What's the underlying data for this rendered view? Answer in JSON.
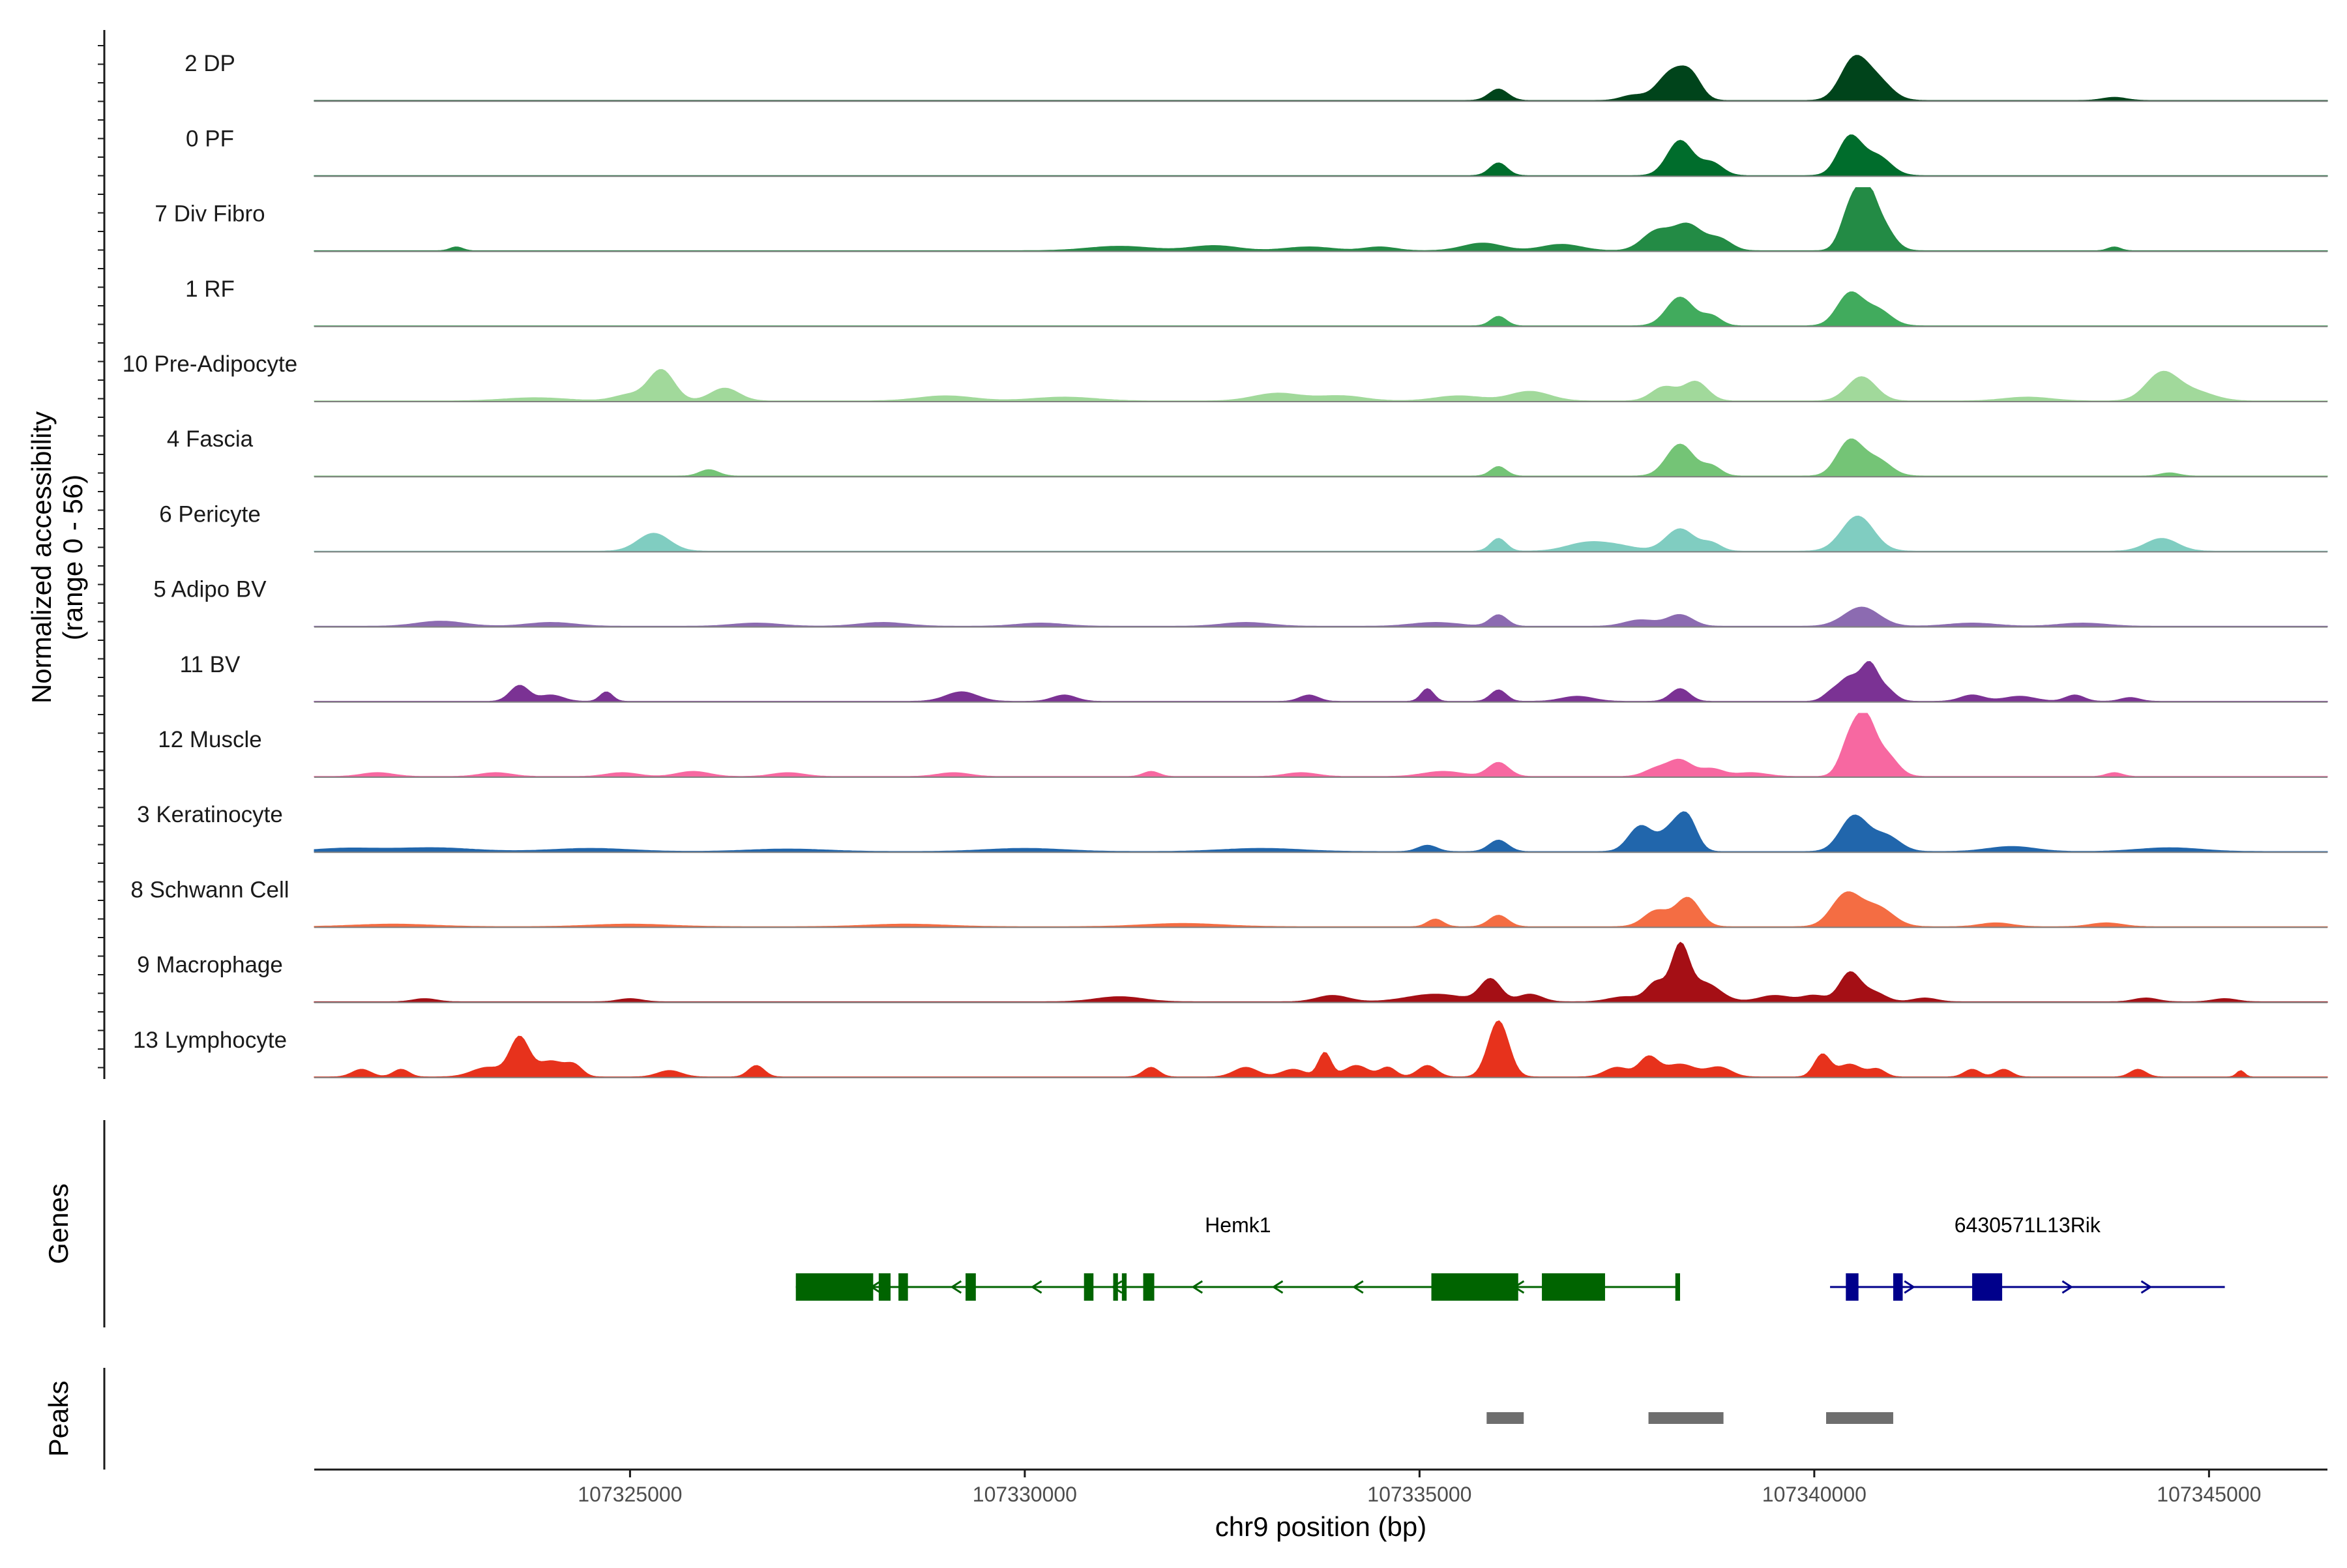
{
  "chart_data": {
    "type": "area",
    "title": "",
    "y_axis_label_line1": "Normalized accessibility",
    "y_axis_label_line2": "(range 0 - 56)",
    "ylim": [
      0,
      56
    ],
    "xlabel": "chr9 position (bp)",
    "xlim": [
      107321000,
      107346500
    ],
    "x_ticks": [
      107325000,
      107330000,
      107335000,
      107340000,
      107345000
    ],
    "x_tick_labels": [
      "107325000",
      "107330000",
      "107335000",
      "107340000",
      "107345000"
    ],
    "panel_labels": {
      "genes": "Genes",
      "peaks": "Peaks"
    },
    "tracks": [
      {
        "name": "2 DP",
        "color": "#00441b",
        "peaks": [
          [
            107336000,
            0.18,
            120
          ],
          [
            107338200,
            0.45,
            180
          ],
          [
            107338450,
            0.3,
            130
          ],
          [
            107340500,
            0.62,
            170
          ],
          [
            107340800,
            0.3,
            180
          ],
          [
            107337700,
            0.08,
            150
          ],
          [
            107343800,
            0.05,
            150
          ]
        ]
      },
      {
        "name": "0 PF",
        "color": "#006d2c",
        "peaks": [
          [
            107336000,
            0.2,
            110
          ],
          [
            107338300,
            0.55,
            160
          ],
          [
            107338700,
            0.2,
            140
          ],
          [
            107340450,
            0.6,
            150
          ],
          [
            107340800,
            0.3,
            170
          ]
        ]
      },
      {
        "name": "7 Div Fibro",
        "color": "#238b45",
        "peaks": [
          [
            107322800,
            0.06,
            80
          ],
          [
            107331200,
            0.07,
            400
          ],
          [
            107332400,
            0.08,
            300
          ],
          [
            107333600,
            0.06,
            300
          ],
          [
            107334500,
            0.06,
            200
          ],
          [
            107335800,
            0.12,
            250
          ],
          [
            107336800,
            0.1,
            250
          ],
          [
            107338000,
            0.3,
            180
          ],
          [
            107338400,
            0.4,
            180
          ],
          [
            107338800,
            0.18,
            150
          ],
          [
            107340450,
            0.6,
            120
          ],
          [
            107340650,
            0.8,
            120
          ],
          [
            107340850,
            0.4,
            150
          ],
          [
            107343800,
            0.06,
            80
          ]
        ]
      },
      {
        "name": "1 RF",
        "color": "#41ab5d",
        "peaks": [
          [
            107336000,
            0.15,
            100
          ],
          [
            107338300,
            0.45,
            170
          ],
          [
            107338700,
            0.15,
            120
          ],
          [
            107340450,
            0.5,
            160
          ],
          [
            107340800,
            0.25,
            170
          ]
        ]
      },
      {
        "name": "10 Pre-Adipocyte",
        "color": "#a1d99b",
        "peaks": [
          [
            107323800,
            0.05,
            400
          ],
          [
            107325000,
            0.1,
            200
          ],
          [
            107325400,
            0.48,
            160
          ],
          [
            107326200,
            0.2,
            180
          ],
          [
            107329000,
            0.08,
            350
          ],
          [
            107330500,
            0.06,
            400
          ],
          [
            107333200,
            0.12,
            300
          ],
          [
            107334000,
            0.08,
            300
          ],
          [
            107335500,
            0.08,
            300
          ],
          [
            107336400,
            0.15,
            250
          ],
          [
            107338100,
            0.22,
            160
          ],
          [
            107338500,
            0.3,
            150
          ],
          [
            107340600,
            0.38,
            180
          ],
          [
            107342700,
            0.06,
            300
          ],
          [
            107344400,
            0.42,
            200
          ],
          [
            107344800,
            0.15,
            250
          ]
        ]
      },
      {
        "name": "4 Fascia",
        "color": "#74c476",
        "peaks": [
          [
            107326000,
            0.1,
            120
          ],
          [
            107336000,
            0.15,
            100
          ],
          [
            107338300,
            0.5,
            170
          ],
          [
            107338700,
            0.15,
            120
          ],
          [
            107340450,
            0.55,
            160
          ],
          [
            107340800,
            0.25,
            170
          ],
          [
            107344500,
            0.05,
            120
          ]
        ]
      },
      {
        "name": "6 Pericyte",
        "color": "#80cdc1",
        "peaks": [
          [
            107325300,
            0.28,
            200
          ],
          [
            107336000,
            0.2,
            100
          ],
          [
            107337100,
            0.12,
            250
          ],
          [
            107337500,
            0.08,
            250
          ],
          [
            107338300,
            0.35,
            180
          ],
          [
            107338700,
            0.12,
            120
          ],
          [
            107340550,
            0.55,
            200
          ],
          [
            107344400,
            0.2,
            200
          ]
        ]
      },
      {
        "name": "5 Adipo BV",
        "color": "#8c6bb1",
        "peaks": [
          [
            107322600,
            0.08,
            300
          ],
          [
            107324000,
            0.06,
            300
          ],
          [
            107326600,
            0.05,
            300
          ],
          [
            107328200,
            0.06,
            300
          ],
          [
            107330200,
            0.05,
            300
          ],
          [
            107332800,
            0.06,
            300
          ],
          [
            107335200,
            0.06,
            300
          ],
          [
            107336000,
            0.18,
            110
          ],
          [
            107337800,
            0.1,
            200
          ],
          [
            107338300,
            0.18,
            160
          ],
          [
            107340600,
            0.3,
            220
          ],
          [
            107342000,
            0.05,
            300
          ],
          [
            107343400,
            0.05,
            300
          ]
        ]
      },
      {
        "name": "11 BV",
        "color": "#7b3294",
        "peaks": [
          [
            107323600,
            0.25,
            120
          ],
          [
            107324000,
            0.1,
            150
          ],
          [
            107324700,
            0.15,
            80
          ],
          [
            107329200,
            0.15,
            200
          ],
          [
            107330500,
            0.1,
            150
          ],
          [
            107333600,
            0.1,
            120
          ],
          [
            107335100,
            0.2,
            80
          ],
          [
            107336000,
            0.18,
            100
          ],
          [
            107337000,
            0.08,
            200
          ],
          [
            107338300,
            0.2,
            120
          ],
          [
            107340200,
            0.1,
            100
          ],
          [
            107340450,
            0.38,
            140
          ],
          [
            107340700,
            0.5,
            100
          ],
          [
            107340900,
            0.2,
            120
          ],
          [
            107342000,
            0.1,
            150
          ],
          [
            107342600,
            0.08,
            200
          ],
          [
            107343300,
            0.1,
            120
          ],
          [
            107344000,
            0.06,
            120
          ]
        ]
      },
      {
        "name": "12 Muscle",
        "color": "#f768a1",
        "peaks": [
          [
            107321800,
            0.06,
            200
          ],
          [
            107323300,
            0.06,
            200
          ],
          [
            107324900,
            0.06,
            200
          ],
          [
            107325800,
            0.08,
            200
          ],
          [
            107327000,
            0.06,
            200
          ],
          [
            107329100,
            0.06,
            200
          ],
          [
            107331600,
            0.08,
            100
          ],
          [
            107333500,
            0.06,
            200
          ],
          [
            107335300,
            0.08,
            250
          ],
          [
            107336000,
            0.22,
            130
          ],
          [
            107338000,
            0.12,
            150
          ],
          [
            107338300,
            0.25,
            150
          ],
          [
            107338700,
            0.12,
            150
          ],
          [
            107339200,
            0.06,
            200
          ],
          [
            107340450,
            0.55,
            120
          ],
          [
            107340650,
            0.8,
            120
          ],
          [
            107340900,
            0.35,
            150
          ],
          [
            107343800,
            0.06,
            100
          ]
        ]
      },
      {
        "name": "3 Keratinocyte",
        "color": "#2166ac",
        "peaks": [
          [
            107321400,
            0.05,
            400
          ],
          [
            107322500,
            0.06,
            500
          ],
          [
            107324500,
            0.05,
            500
          ],
          [
            107327000,
            0.04,
            500
          ],
          [
            107330000,
            0.05,
            500
          ],
          [
            107333000,
            0.05,
            500
          ],
          [
            107335100,
            0.1,
            120
          ],
          [
            107336000,
            0.18,
            120
          ],
          [
            107337800,
            0.4,
            150
          ],
          [
            107338200,
            0.35,
            150
          ],
          [
            107338400,
            0.45,
            120
          ],
          [
            107340500,
            0.55,
            170
          ],
          [
            107340900,
            0.25,
            180
          ],
          [
            107342500,
            0.08,
            300
          ],
          [
            107344500,
            0.06,
            400
          ]
        ]
      },
      {
        "name": "8 Schwann Cell",
        "color": "#f46d43",
        "peaks": [
          [
            107322000,
            0.04,
            500
          ],
          [
            107325000,
            0.04,
            500
          ],
          [
            107328500,
            0.04,
            500
          ],
          [
            107332000,
            0.05,
            500
          ],
          [
            107335200,
            0.12,
            100
          ],
          [
            107336000,
            0.18,
            120
          ],
          [
            107338000,
            0.25,
            160
          ],
          [
            107338400,
            0.45,
            150
          ],
          [
            107340400,
            0.5,
            180
          ],
          [
            107340800,
            0.3,
            200
          ],
          [
            107342300,
            0.06,
            200
          ],
          [
            107343700,
            0.06,
            200
          ]
        ]
      },
      {
        "name": "9 Macrophage",
        "color": "#a50f15",
        "peaks": [
          [
            107322400,
            0.05,
            150
          ],
          [
            107325000,
            0.05,
            150
          ],
          [
            107331200,
            0.08,
            300
          ],
          [
            107333900,
            0.1,
            200
          ],
          [
            107335200,
            0.12,
            350
          ],
          [
            107335900,
            0.35,
            130
          ],
          [
            107336400,
            0.12,
            150
          ],
          [
            107337600,
            0.08,
            200
          ],
          [
            107338000,
            0.3,
            120
          ],
          [
            107338300,
            0.82,
            110
          ],
          [
            107338600,
            0.3,
            200
          ],
          [
            107339500,
            0.1,
            200
          ],
          [
            107340000,
            0.1,
            150
          ],
          [
            107340450,
            0.45,
            130
          ],
          [
            107340750,
            0.15,
            150
          ],
          [
            107341400,
            0.06,
            150
          ],
          [
            107344200,
            0.06,
            150
          ],
          [
            107345200,
            0.05,
            150
          ]
        ]
      },
      {
        "name": "13 Lymphocyte",
        "color": "#e7321c",
        "peaks": [
          [
            107321600,
            0.12,
            120
          ],
          [
            107322100,
            0.12,
            100
          ],
          [
            107323200,
            0.15,
            200
          ],
          [
            107323600,
            0.6,
            120
          ],
          [
            107324000,
            0.25,
            180
          ],
          [
            107324300,
            0.15,
            100
          ],
          [
            107325500,
            0.1,
            150
          ],
          [
            107326600,
            0.18,
            100
          ],
          [
            107331600,
            0.15,
            100
          ],
          [
            107332800,
            0.15,
            150
          ],
          [
            107333400,
            0.12,
            150
          ],
          [
            107333800,
            0.38,
            80
          ],
          [
            107334200,
            0.18,
            150
          ],
          [
            107334600,
            0.15,
            100
          ],
          [
            107335100,
            0.18,
            120
          ],
          [
            107336000,
            0.88,
            130
          ],
          [
            107337500,
            0.15,
            150
          ],
          [
            107337900,
            0.3,
            120
          ],
          [
            107338300,
            0.2,
            200
          ],
          [
            107338800,
            0.15,
            150
          ],
          [
            107340100,
            0.35,
            100
          ],
          [
            107340450,
            0.2,
            150
          ],
          [
            107340800,
            0.12,
            100
          ],
          [
            107342000,
            0.12,
            100
          ],
          [
            107342400,
            0.12,
            100
          ],
          [
            107344100,
            0.12,
            100
          ],
          [
            107345400,
            0.1,
            50
          ]
        ]
      }
    ],
    "genes": [
      {
        "name": "Hemk1",
        "strand": "-",
        "color": "#006400",
        "start": 107327100,
        "end": 107338300,
        "exons": [
          [
            107327100,
            107328080
          ],
          [
            107328150,
            107328300
          ],
          [
            107328400,
            107328520
          ],
          [
            107329250,
            107329380
          ],
          [
            107330750,
            107330870
          ],
          [
            107331120,
            107331180
          ],
          [
            107331230,
            107331290
          ],
          [
            107331500,
            107331640
          ],
          [
            107335150,
            107336250
          ],
          [
            107336550,
            107337350
          ],
          [
            107338240,
            107338300
          ]
        ]
      },
      {
        "name": "6430571L13Rik",
        "strand": "+",
        "color": "#00008b",
        "start": 107340200,
        "end": 107345200,
        "exons": [
          [
            107340400,
            107340560
          ],
          [
            107341000,
            107341120
          ],
          [
            107342000,
            107342380
          ]
        ]
      }
    ],
    "peaks_track": [
      [
        107335850,
        107336320
      ],
      [
        107337900,
        107338850
      ],
      [
        107340150,
        107341000
      ]
    ]
  }
}
